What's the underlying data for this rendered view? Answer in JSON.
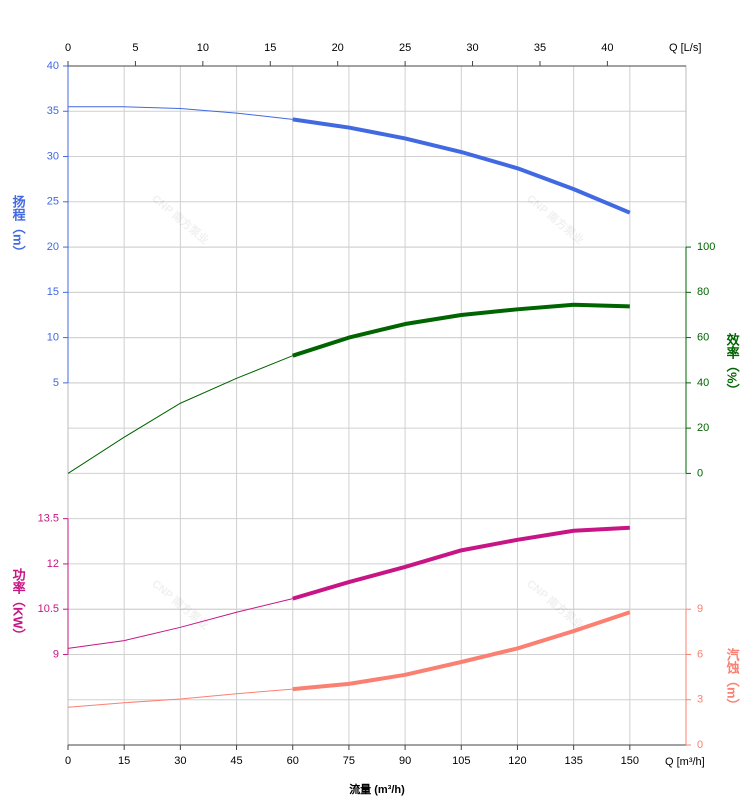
{
  "chart_data": {
    "type": "line",
    "x_axes": {
      "bottom": {
        "label": "Q [m³/h]",
        "title": "流量 (m³/h)",
        "lim": [
          0,
          165
        ],
        "ticks": [
          0,
          15,
          30,
          45,
          60,
          75,
          90,
          105,
          120,
          135,
          150
        ]
      },
      "top": {
        "label": "Q [L/s]",
        "lim": [
          0,
          45.83
        ],
        "ticks": [
          0,
          5,
          10,
          15,
          20,
          25,
          30,
          35,
          40
        ]
      }
    },
    "y_axes": {
      "head": {
        "label": "扬程（m）",
        "side": "left",
        "color": "#4169e1",
        "lim": [
          -35,
          40
        ],
        "ticks": [
          5,
          10,
          15,
          20,
          25,
          30,
          35,
          40
        ]
      },
      "efficiency": {
        "label": "效率（%）",
        "side": "right",
        "color": "#006400",
        "lim": [
          -120,
          180
        ],
        "ticks": [
          0,
          20,
          40,
          60,
          80,
          100
        ]
      },
      "power": {
        "label": "功率（KW）",
        "side": "left",
        "color": "#c71585",
        "lim": [
          6,
          28.5
        ],
        "ticks": [
          9,
          10.5,
          12,
          13.5
        ]
      },
      "npsh": {
        "label": "汽蚀（m）",
        "side": "right",
        "color": "#fa8072",
        "lim": [
          0,
          45
        ],
        "ticks": [
          0,
          3,
          6,
          9
        ]
      }
    },
    "grid": true,
    "watermark": "CNP 南方泵业",
    "series": [
      {
        "axis": "head",
        "color": "#4169e1",
        "line_width": 1,
        "x": [
          0,
          15,
          30,
          45,
          60
        ],
        "values": [
          35.5,
          35.5,
          35.3,
          34.8,
          34.1
        ]
      },
      {
        "axis": "head",
        "color": "#4169e1",
        "line_width": 4,
        "x": [
          60,
          75,
          90,
          105,
          120,
          135,
          150
        ],
        "values": [
          34.1,
          33.2,
          32.0,
          30.5,
          28.7,
          26.4,
          23.8
        ]
      },
      {
        "axis": "efficiency",
        "color": "#006400",
        "line_width": 1,
        "x": [
          0,
          15,
          30,
          45,
          60
        ],
        "values": [
          0,
          16,
          31,
          42,
          52
        ]
      },
      {
        "axis": "efficiency",
        "color": "#006400",
        "line_width": 4,
        "x": [
          60,
          75,
          90,
          105,
          120,
          135,
          150
        ],
        "values": [
          52,
          60,
          66,
          70,
          72.5,
          74.5,
          73.8
        ]
      },
      {
        "axis": "power",
        "color": "#c71585",
        "line_width": 1,
        "x": [
          0,
          15,
          30,
          45,
          60
        ],
        "values": [
          9.2,
          9.46,
          9.9,
          10.4,
          10.85
        ]
      },
      {
        "axis": "power",
        "color": "#c71585",
        "line_width": 4,
        "x": [
          60,
          75,
          90,
          105,
          120,
          135,
          150
        ],
        "values": [
          10.85,
          11.4,
          11.9,
          12.45,
          12.8,
          13.1,
          13.2
        ]
      },
      {
        "axis": "npsh",
        "color": "#fa8072",
        "line_width": 1,
        "x": [
          0,
          15,
          30,
          45,
          60
        ],
        "values": [
          2.5,
          2.8,
          3.05,
          3.4,
          3.7
        ]
      },
      {
        "axis": "npsh",
        "color": "#fa8072",
        "line_width": 4,
        "x": [
          60,
          75,
          90,
          105,
          120,
          135,
          150
        ],
        "values": [
          3.7,
          4.05,
          4.65,
          5.5,
          6.4,
          7.55,
          8.8
        ]
      }
    ]
  }
}
